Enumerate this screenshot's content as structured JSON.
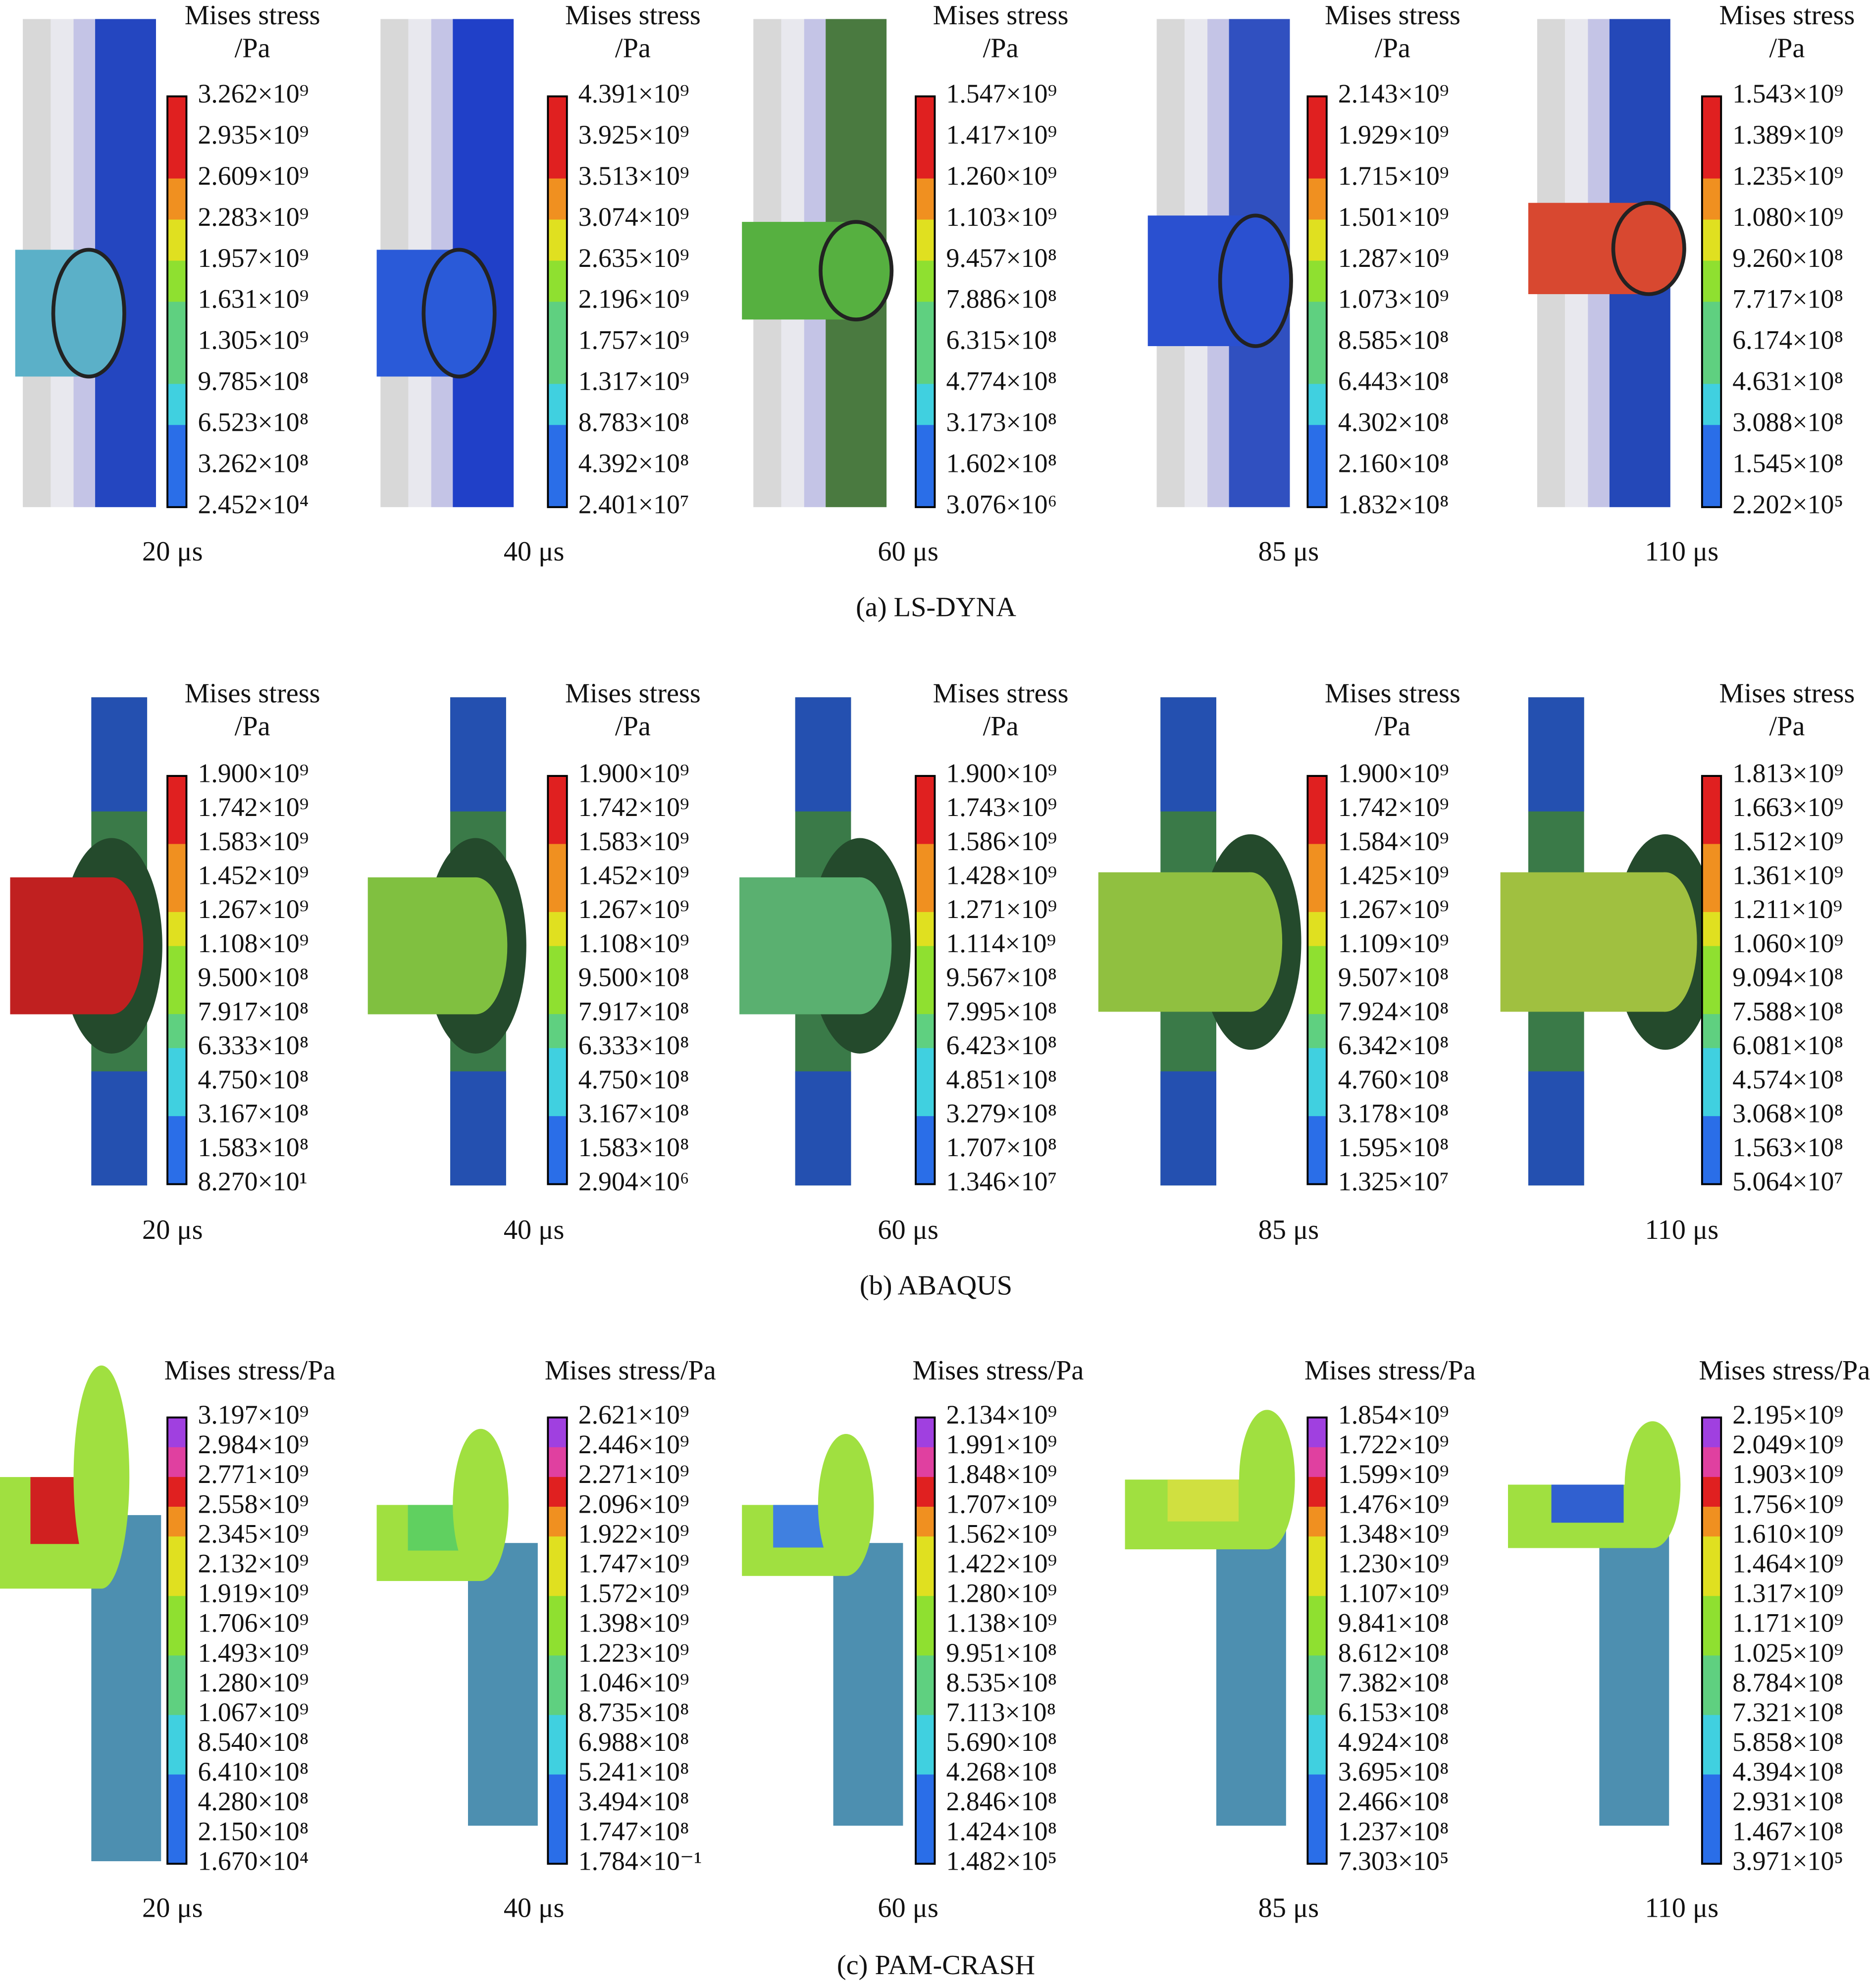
{
  "rows": [
    {
      "caption": "(a) LS-DYNA",
      "panels": [
        {
          "time": "20 μs",
          "legend_title": [
            "Mises stress",
            "/Pa"
          ],
          "legend_labels": [
            "3.262×10⁹",
            "2.935×10⁹",
            "2.609×10⁹",
            "2.283×10⁹",
            "1.957×10⁹",
            "1.631×10⁹",
            "1.305×10⁹",
            "9.785×10⁸",
            "6.523×10⁸",
            "3.262×10⁸",
            "2.452×10⁴"
          ]
        },
        {
          "time": "40 μs",
          "legend_title": [
            "Mises stress",
            "/Pa"
          ],
          "legend_labels": [
            "4.391×10⁹",
            "3.925×10⁹",
            "3.513×10⁹",
            "3.074×10⁹",
            "2.635×10⁹",
            "2.196×10⁹",
            "1.757×10⁹",
            "1.317×10⁹",
            "8.783×10⁸",
            "4.392×10⁸",
            "2.401×10⁷"
          ]
        },
        {
          "time": "60 μs",
          "legend_title": [
            "Mises stress",
            "/Pa"
          ],
          "legend_labels": [
            "1.547×10⁹",
            "1.417×10⁹",
            "1.260×10⁹",
            "1.103×10⁹",
            "9.457×10⁸",
            "7.886×10⁸",
            "6.315×10⁸",
            "4.774×10⁸",
            "3.173×10⁸",
            "1.602×10⁸",
            "3.076×10⁶"
          ]
        },
        {
          "time": "85 μs",
          "legend_title": [
            "Mises stress",
            "/Pa"
          ],
          "legend_labels": [
            "2.143×10⁹",
            "1.929×10⁹",
            "1.715×10⁹",
            "1.501×10⁹",
            "1.287×10⁹",
            "1.073×10⁹",
            "8.585×10⁸",
            "6.443×10⁸",
            "4.302×10⁸",
            "2.160×10⁸",
            "1.832×10⁸"
          ]
        },
        {
          "time": "110 μs",
          "legend_title": [
            "Mises stress",
            "/Pa"
          ],
          "legend_labels": [
            "1.543×10⁹",
            "1.389×10⁹",
            "1.235×10⁹",
            "1.080×10⁹",
            "9.260×10⁸",
            "7.717×10⁸",
            "6.174×10⁸",
            "4.631×10⁸",
            "3.088×10⁸",
            "1.545×10⁸",
            "2.202×10⁵"
          ]
        }
      ]
    },
    {
      "caption": "(b) ABAQUS",
      "panels": [
        {
          "time": "20 μs",
          "legend_title": [
            "Mises stress",
            "/Pa"
          ],
          "legend_labels": [
            "1.900×10⁹",
            "1.742×10⁹",
            "1.583×10⁹",
            "1.452×10⁹",
            "1.267×10⁹",
            "1.108×10⁹",
            "9.500×10⁸",
            "7.917×10⁸",
            "6.333×10⁸",
            "4.750×10⁸",
            "3.167×10⁸",
            "1.583×10⁸",
            "8.270×10¹"
          ]
        },
        {
          "time": "40 μs",
          "legend_title": [
            "Mises stress",
            "/Pa"
          ],
          "legend_labels": [
            "1.900×10⁹",
            "1.742×10⁹",
            "1.583×10⁹",
            "1.452×10⁹",
            "1.267×10⁹",
            "1.108×10⁹",
            "9.500×10⁸",
            "7.917×10⁸",
            "6.333×10⁸",
            "4.750×10⁸",
            "3.167×10⁸",
            "1.583×10⁸",
            "2.904×10⁶"
          ]
        },
        {
          "time": "60 μs",
          "legend_title": [
            "Mises stress",
            "/Pa"
          ],
          "legend_labels": [
            "1.900×10⁹",
            "1.743×10⁹",
            "1.586×10⁹",
            "1.428×10⁹",
            "1.271×10⁹",
            "1.114×10⁹",
            "9.567×10⁸",
            "7.995×10⁸",
            "6.423×10⁸",
            "4.851×10⁸",
            "3.279×10⁸",
            "1.707×10⁸",
            "1.346×10⁷"
          ]
        },
        {
          "time": "85 μs",
          "legend_title": [
            "Mises stress",
            "/Pa"
          ],
          "legend_labels": [
            "1.900×10⁹",
            "1.742×10⁹",
            "1.584×10⁹",
            "1.425×10⁹",
            "1.267×10⁹",
            "1.109×10⁹",
            "9.507×10⁸",
            "7.924×10⁸",
            "6.342×10⁸",
            "4.760×10⁸",
            "3.178×10⁸",
            "1.595×10⁸",
            "1.325×10⁷"
          ]
        },
        {
          "time": "110 μs",
          "legend_title": [
            "Mises stress",
            "/Pa"
          ],
          "legend_labels": [
            "1.813×10⁹",
            "1.663×10⁹",
            "1.512×10⁹",
            "1.361×10⁹",
            "1.211×10⁹",
            "1.060×10⁹",
            "9.094×10⁸",
            "7.588×10⁸",
            "6.081×10⁸",
            "4.574×10⁸",
            "3.068×10⁸",
            "1.563×10⁸",
            "5.064×10⁷"
          ]
        }
      ]
    },
    {
      "caption": "(c) PAM-CRASH",
      "panels": [
        {
          "time": "20 μs",
          "legend_title": [
            "Mises stress/Pa"
          ],
          "legend_labels": [
            "3.197×10⁹",
            "2.984×10⁹",
            "2.771×10⁹",
            "2.558×10⁹",
            "2.345×10⁹",
            "2.132×10⁹",
            "1.919×10⁹",
            "1.706×10⁹",
            "1.493×10⁹",
            "1.280×10⁹",
            "1.067×10⁹",
            "8.540×10⁸",
            "6.410×10⁸",
            "4.280×10⁸",
            "2.150×10⁸",
            "1.670×10⁴"
          ]
        },
        {
          "time": "40 μs",
          "legend_title": [
            "Mises stress/Pa"
          ],
          "legend_labels": [
            "2.621×10⁹",
            "2.446×10⁹",
            "2.271×10⁹",
            "2.096×10⁹",
            "1.922×10⁹",
            "1.747×10⁹",
            "1.572×10⁹",
            "1.398×10⁹",
            "1.223×10⁹",
            "1.046×10⁹",
            "8.735×10⁸",
            "6.988×10⁸",
            "5.241×10⁸",
            "3.494×10⁸",
            "1.747×10⁸",
            "1.784×10⁻¹"
          ]
        },
        {
          "time": "60 μs",
          "legend_title": [
            "Mises stress/Pa"
          ],
          "legend_labels": [
            "2.134×10⁹",
            "1.991×10⁹",
            "1.848×10⁹",
            "1.707×10⁹",
            "1.562×10⁹",
            "1.422×10⁹",
            "1.280×10⁹",
            "1.138×10⁹",
            "9.951×10⁸",
            "8.535×10⁸",
            "7.113×10⁸",
            "5.690×10⁸",
            "4.268×10⁸",
            "2.846×10⁸",
            "1.424×10⁸",
            "1.482×10⁵"
          ]
        },
        {
          "time": "85 μs",
          "legend_title": [
            "Mises stress/Pa"
          ],
          "legend_labels": [
            "1.854×10⁹",
            "1.722×10⁹",
            "1.599×10⁹",
            "1.476×10⁹",
            "1.348×10⁹",
            "1.230×10⁹",
            "1.107×10⁹",
            "9.841×10⁸",
            "8.612×10⁸",
            "7.382×10⁸",
            "6.153×10⁸",
            "4.924×10⁸",
            "3.695×10⁸",
            "2.466×10⁸",
            "1.237×10⁸",
            "7.303×10⁵"
          ]
        },
        {
          "time": "110 μs",
          "legend_title": [
            "Mises stress/Pa"
          ],
          "legend_labels": [
            "2.195×10⁹",
            "2.049×10⁹",
            "1.903×10⁹",
            "1.756×10⁹",
            "1.610×10⁹",
            "1.464×10⁹",
            "1.317×10⁹",
            "1.171×10⁹",
            "1.025×10⁹",
            "8.784×10⁸",
            "7.321×10⁸",
            "5.858×10⁸",
            "4.394×10⁸",
            "2.931×10⁸",
            "1.467×10⁸",
            "3.971×10⁵"
          ]
        }
      ]
    }
  ]
}
